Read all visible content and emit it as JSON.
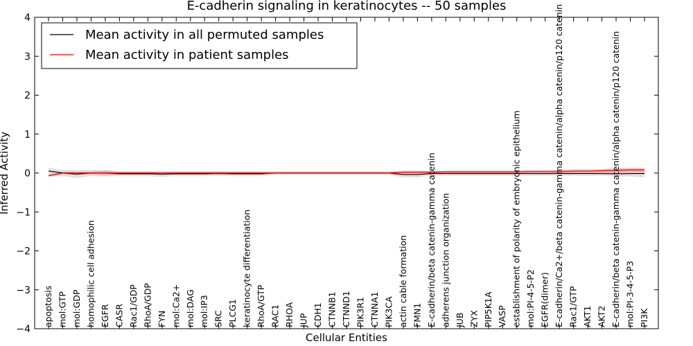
{
  "chart_data": {
    "type": "line",
    "title": "E-cadherin signaling in keratinocytes -- 50 samples",
    "xlabel": "Cellular Entities",
    "ylabel": "Inferred Activity",
    "ylim": [
      -4,
      4
    ],
    "yticks": [
      -4,
      -3,
      -2,
      -1,
      0,
      1,
      2,
      3,
      4
    ],
    "legend_position": "top-left",
    "categories": [
      "apoptosis",
      "mol:GTP",
      "mol:GDP",
      "homophilic cell adhesion",
      "EGFR",
      "CASR",
      "Rac1/GDP",
      "RhoA/GDP",
      "FYN",
      "mol:Ca2+",
      "mol:DAG",
      "mol:IP3",
      "SRC",
      "PLCG1",
      "keratinocyte differentiation",
      "RhoA/GTP",
      "RAC1",
      "RHOA",
      "JUP",
      "CDH1",
      "CTNNB1",
      "CTNND1",
      "PIK3R1",
      "CTNNA1",
      "PIK3CA",
      "actin cable formation",
      "FMN1",
      "E-cadherin/beta catenin-gamma catenin",
      "adherens junction organization",
      "JUB",
      "ZYX",
      "PIP5K1A",
      "VASP",
      "establishment of polarity of embryonic epithelium",
      "mol:PI-4-5-P2",
      "EGFR(dimer)",
      "E-cadherin/Ca2+/beta catenin-gamma catenin/alpha catenin/p120 catenin",
      "Rac1/GTP",
      "AKT1",
      "AKT2",
      "E-cadherin/beta catenin-gamma catenin/alpha catenin/p120 catenin",
      "mol:PI-3-4-5-P3",
      "PI3K"
    ],
    "series": [
      {
        "name": "Mean activity in all permuted samples",
        "color": "#000000",
        "band_color": "#bbbbbb",
        "values": [
          0.05,
          0.0,
          -0.03,
          0.0,
          0.0,
          -0.02,
          -0.02,
          -0.02,
          -0.03,
          -0.02,
          -0.02,
          -0.02,
          -0.01,
          -0.02,
          -0.02,
          -0.02,
          0.0,
          0.0,
          0.0,
          0.0,
          0.0,
          0.0,
          0.0,
          0.0,
          0.0,
          -0.04,
          -0.04,
          -0.01,
          -0.01,
          -0.01,
          -0.01,
          -0.01,
          -0.01,
          -0.01,
          -0.01,
          -0.01,
          -0.01,
          -0.01,
          -0.01,
          -0.01,
          -0.02,
          -0.01,
          -0.01
        ],
        "band": [
          0.08,
          0.08,
          0.1,
          0.08,
          0.08,
          0.06,
          0.06,
          0.06,
          0.07,
          0.06,
          0.06,
          0.06,
          0.06,
          0.06,
          0.06,
          0.06,
          0.05,
          0.05,
          0.05,
          0.05,
          0.05,
          0.05,
          0.05,
          0.05,
          0.05,
          0.07,
          0.07,
          0.06,
          0.06,
          0.06,
          0.06,
          0.06,
          0.06,
          0.06,
          0.06,
          0.06,
          0.06,
          0.06,
          0.06,
          0.06,
          0.07,
          0.08,
          0.1
        ]
      },
      {
        "name": "Mean activity in patient samples",
        "color": "#ff0000",
        "band_color": "#ff8080",
        "values": [
          -0.07,
          0.0,
          0.0,
          0.0,
          0.0,
          0.0,
          0.0,
          0.0,
          0.0,
          0.0,
          0.0,
          0.0,
          0.0,
          0.0,
          0.0,
          0.0,
          0.0,
          0.0,
          0.0,
          0.0,
          0.0,
          0.0,
          0.0,
          0.0,
          0.0,
          0.02,
          0.02,
          0.02,
          0.03,
          0.03,
          0.03,
          0.03,
          0.03,
          0.03,
          0.04,
          0.04,
          0.04,
          0.05,
          0.05,
          0.06,
          0.07,
          0.08,
          0.08
        ],
        "band": [
          0.03,
          0.03,
          0.03,
          0.03,
          0.06,
          0.03,
          0.03,
          0.03,
          0.03,
          0.03,
          0.03,
          0.03,
          0.03,
          0.03,
          0.03,
          0.03,
          0.02,
          0.02,
          0.02,
          0.02,
          0.02,
          0.02,
          0.02,
          0.02,
          0.02,
          0.04,
          0.04,
          0.03,
          0.03,
          0.03,
          0.03,
          0.03,
          0.03,
          0.03,
          0.03,
          0.03,
          0.04,
          0.04,
          0.04,
          0.04,
          0.05,
          0.05,
          0.05
        ]
      }
    ]
  }
}
